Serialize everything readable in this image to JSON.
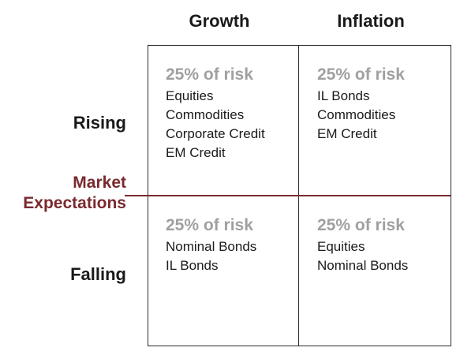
{
  "colors": {
    "accent": "#7a2a2f",
    "risk_gray": "#a0a0a0"
  },
  "columns": [
    "Growth",
    "Inflation"
  ],
  "rows": [
    "Rising",
    "Falling"
  ],
  "axis_label_line1": "Market",
  "axis_label_line2": "Expectations",
  "cells": {
    "rising_growth": {
      "risk": "25% of risk",
      "assets": [
        "Equities",
        "Commodities",
        "Corporate Credit",
        "EM Credit"
      ]
    },
    "rising_inflation": {
      "risk": "25% of risk",
      "assets": [
        "IL Bonds",
        "Commodities",
        "EM Credit"
      ]
    },
    "falling_growth": {
      "risk": "25% of risk",
      "assets": [
        "Nominal Bonds",
        "IL Bonds"
      ]
    },
    "falling_inflation": {
      "risk": "25% of risk",
      "assets": [
        "Equities",
        "Nominal Bonds"
      ]
    }
  }
}
